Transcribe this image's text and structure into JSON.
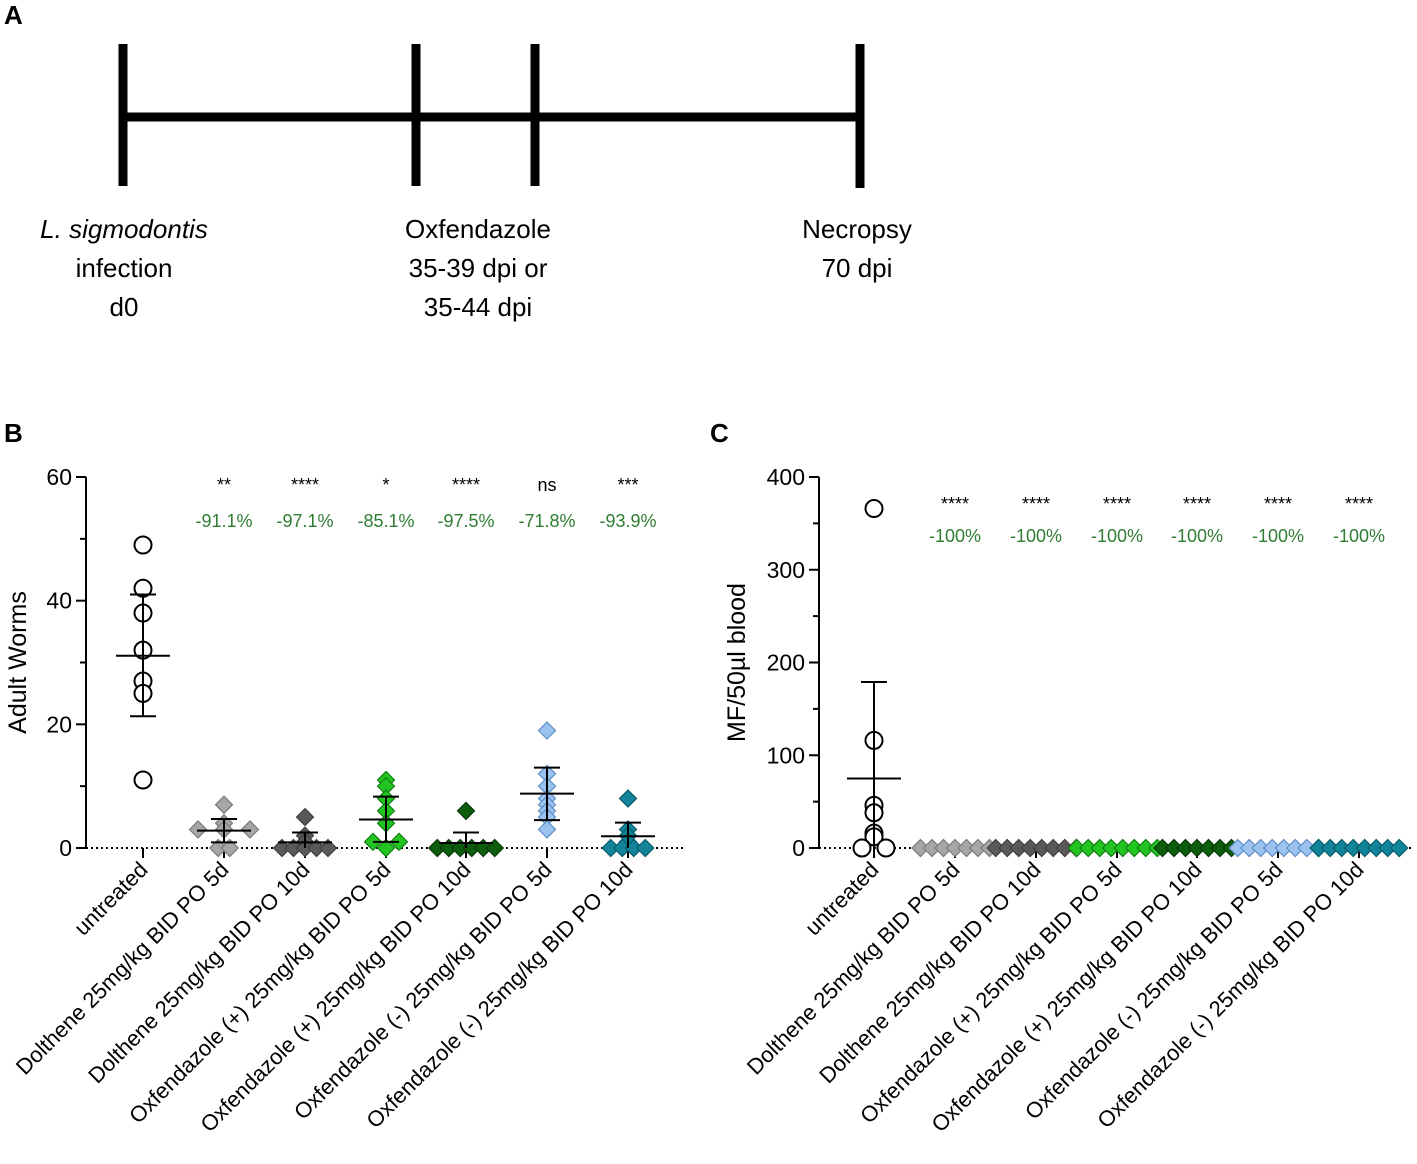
{
  "panels": {
    "a": {
      "letter": "A",
      "timeline": {
        "events": [
          {
            "lines": [
              "L. sigmodontis",
              "infection",
              "d0"
            ],
            "italic_first": true
          },
          {
            "lines": [
              "Oxfendazole",
              "35-39 dpi or",
              "35-44 dpi"
            ],
            "italic_first": false
          },
          {
            "lines": [
              "Necropsy",
              "70 dpi"
            ],
            "italic_first": false
          }
        ]
      }
    },
    "b": {
      "letter": "B"
    },
    "c": {
      "letter": "C"
    }
  },
  "chart_data": [
    {
      "id": "b",
      "type": "scatter",
      "ylabel": "Adult Worms",
      "ylim": [
        0,
        60
      ],
      "yticks": [
        "0",
        "20",
        "40",
        "60"
      ],
      "accent_color": "#2e7d32",
      "categories": [
        "untreated",
        "Dolthene 25mg/kg BID PO 5d",
        "Dolthene 25mg/kg BID PO 10d",
        "Oxfendazole (+) 25mg/kg BID PO 5d",
        "Oxfendazole (+) 25mg/kg BID PO 10d",
        "Oxfendazole (-) 25mg/kg BID PO 5d",
        "Oxfendazole (-) 25mg/kg BID PO 10d"
      ],
      "groups": [
        {
          "marker": "circle",
          "fill": "#ffffff",
          "stroke": "#000000",
          "points": [
            49,
            42,
            38,
            32,
            27,
            25,
            11
          ],
          "mean": 31.1,
          "sd_low": 21.3,
          "sd_high": 41.0,
          "significance": "",
          "reduction": ""
        },
        {
          "marker": "diamond",
          "fill": "#a6a6a6",
          "stroke": "#7a7a7a",
          "points": [
            7,
            4,
            3,
            3,
            0,
            0,
            3
          ],
          "mean": 2.8,
          "sd_low": 0.9,
          "sd_high": 4.7,
          "significance": "**",
          "reduction": "-91.1%"
        },
        {
          "marker": "diamond",
          "fill": "#595959",
          "stroke": "#404040",
          "points": [
            5,
            2,
            1,
            0,
            0,
            0,
            0,
            0
          ],
          "mean": 0.9,
          "sd_low": 0,
          "sd_high": 2.5,
          "significance": "****",
          "reduction": "-97.1%"
        },
        {
          "marker": "diamond",
          "fill": "#22c422",
          "stroke": "#128012",
          "points": [
            11,
            10,
            8,
            6,
            4,
            1,
            1,
            0
          ],
          "mean": 4.6,
          "sd_low": 1.0,
          "sd_high": 8.3,
          "significance": "*",
          "reduction": "-85.1%"
        },
        {
          "marker": "diamond",
          "fill": "#0c5d0c",
          "stroke": "#063806",
          "points": [
            6,
            0,
            0,
            0,
            0,
            0,
            0
          ],
          "mean": 0.8,
          "sd_low": 0,
          "sd_high": 2.5,
          "significance": "****",
          "reduction": "-97.5%"
        },
        {
          "marker": "diamond",
          "fill": "#9cc3ef",
          "stroke": "#5e8fc9",
          "points": [
            19,
            12,
            10,
            8,
            7,
            6,
            5,
            3
          ],
          "mean": 8.8,
          "sd_low": 4.5,
          "sd_high": 13.0,
          "significance": "ns",
          "reduction": "-71.8%"
        },
        {
          "marker": "diamond",
          "fill": "#11849a",
          "stroke": "#0a5b6b",
          "points": [
            8,
            3,
            2,
            1,
            0,
            0,
            0,
            0
          ],
          "mean": 1.9,
          "sd_low": 0,
          "sd_high": 4.1,
          "significance": "***",
          "reduction": "-93.9%"
        }
      ]
    },
    {
      "id": "c",
      "type": "scatter",
      "ylabel": "MF/50µl blood",
      "ylim": [
        0,
        400
      ],
      "yticks": [
        "0",
        "100",
        "200",
        "300",
        "400"
      ],
      "accent_color": "#2e7d32",
      "categories": [
        "untreated",
        "Dolthene 25mg/kg BID PO 5d",
        "Dolthene 25mg/kg BID PO 10d",
        "Oxfendazole (+) 25mg/kg BID PO 5d",
        "Oxfendazole (+) 25mg/kg BID PO 10d",
        "Oxfendazole (-) 25mg/kg BID PO 5d",
        "Oxfendazole (-) 25mg/kg BID PO 10d"
      ],
      "groups": [
        {
          "marker": "circle",
          "fill": "#ffffff",
          "stroke": "#000000",
          "points": [
            366,
            116,
            46,
            38,
            16,
            12,
            0,
            0
          ],
          "mean": 75,
          "sd_low": 0,
          "sd_high": 179,
          "significance": "",
          "reduction": ""
        },
        {
          "marker": "diamond",
          "fill": "#a6a6a6",
          "stroke": "#7a7a7a",
          "points": [
            0,
            0,
            0,
            0,
            0,
            0,
            0
          ],
          "mean": 0,
          "sd_low": 0,
          "sd_high": 0,
          "significance": "****",
          "reduction": "-100%"
        },
        {
          "marker": "diamond",
          "fill": "#595959",
          "stroke": "#404040",
          "points": [
            0,
            0,
            0,
            0,
            0,
            0,
            0,
            0
          ],
          "mean": 0,
          "sd_low": 0,
          "sd_high": 0,
          "significance": "****",
          "reduction": "-100%"
        },
        {
          "marker": "diamond",
          "fill": "#22c422",
          "stroke": "#128012",
          "points": [
            0,
            0,
            0,
            0,
            0,
            0,
            0,
            0
          ],
          "mean": 0,
          "sd_low": 0,
          "sd_high": 0,
          "significance": "****",
          "reduction": "-100%"
        },
        {
          "marker": "diamond",
          "fill": "#0c5d0c",
          "stroke": "#063806",
          "points": [
            0,
            0,
            0,
            0,
            0,
            0,
            0
          ],
          "mean": 0,
          "sd_low": 0,
          "sd_high": 0,
          "significance": "****",
          "reduction": "-100%"
        },
        {
          "marker": "diamond",
          "fill": "#9cc3ef",
          "stroke": "#5e8fc9",
          "points": [
            0,
            0,
            0,
            0,
            0,
            0,
            0,
            0
          ],
          "mean": 0,
          "sd_low": 0,
          "sd_high": 0,
          "significance": "****",
          "reduction": "-100%"
        },
        {
          "marker": "diamond",
          "fill": "#11849a",
          "stroke": "#0a5b6b",
          "points": [
            0,
            0,
            0,
            0,
            0,
            0,
            0,
            0
          ],
          "mean": 0,
          "sd_low": 0,
          "sd_high": 0,
          "significance": "****",
          "reduction": "-100%"
        }
      ]
    }
  ]
}
